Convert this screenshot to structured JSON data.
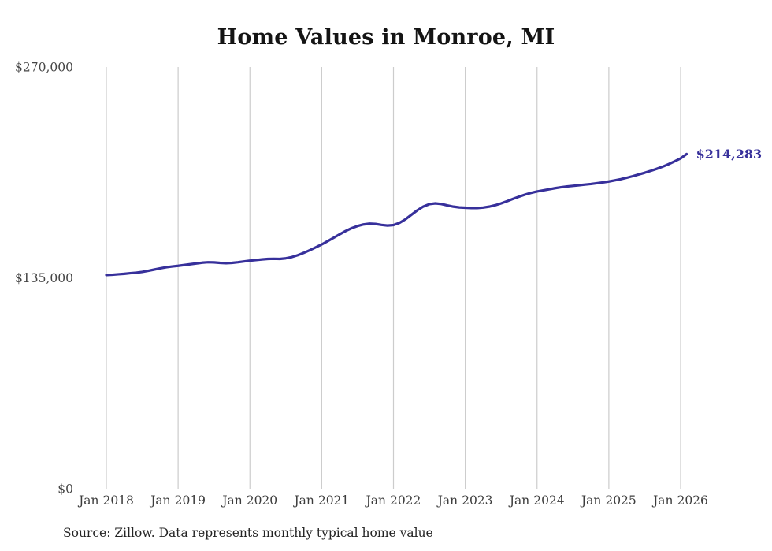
{
  "page": {
    "title": "Home Values in Monroe, MI",
    "source_note": "Source: Zillow. Data represents monthly typical home value"
  },
  "chart_data": {
    "type": "line",
    "title": "Home Values in Monroe, MI",
    "series_name": "Monthly typical home value",
    "x_start_month": "Jan 2018",
    "x_ticks": [
      "Jan 2018",
      "Jan 2019",
      "Jan 2020",
      "Jan 2021",
      "Jan 2022",
      "Jan 2023",
      "Jan 2024",
      "Jan 2025",
      "Jan 2026"
    ],
    "y_ticks": [
      {
        "label": "$0",
        "value": 0
      },
      {
        "label": "$135,000",
        "value": 135000
      },
      {
        "label": "$270,000",
        "value": 270000
      }
    ],
    "ylim": [
      0,
      270000
    ],
    "grid": "vertical-only",
    "legend": "none",
    "line_color": "#37309b",
    "grid_color": "#cccccc",
    "tick_label_color": "#454545",
    "end_label": "$214,283",
    "end_value": 214283,
    "values": [
      136800,
      137000,
      137300,
      137600,
      138000,
      138300,
      138800,
      139500,
      140300,
      141100,
      141800,
      142300,
      142700,
      143200,
      143700,
      144200,
      144700,
      145000,
      144900,
      144600,
      144400,
      144600,
      145000,
      145500,
      146000,
      146400,
      146800,
      147100,
      147200,
      147100,
      147500,
      148300,
      149500,
      151000,
      152700,
      154500,
      156400,
      158500,
      160700,
      162900,
      165000,
      166800,
      168200,
      169200,
      169700,
      169500,
      168900,
      168500,
      168800,
      170200,
      172500,
      175400,
      178300,
      180700,
      182200,
      182700,
      182300,
      181400,
      180600,
      180100,
      179900,
      179700,
      179700,
      180000,
      180600,
      181500,
      182700,
      184100,
      185600,
      187000,
      188300,
      189400,
      190300,
      191000,
      191700,
      192400,
      193000,
      193500,
      193900,
      194300,
      194700,
      195100,
      195600,
      196100,
      196700,
      197400,
      198200,
      199100,
      200100,
      201200,
      202300,
      203500,
      204800,
      206200,
      207800,
      209600,
      211500,
      214283
    ]
  }
}
